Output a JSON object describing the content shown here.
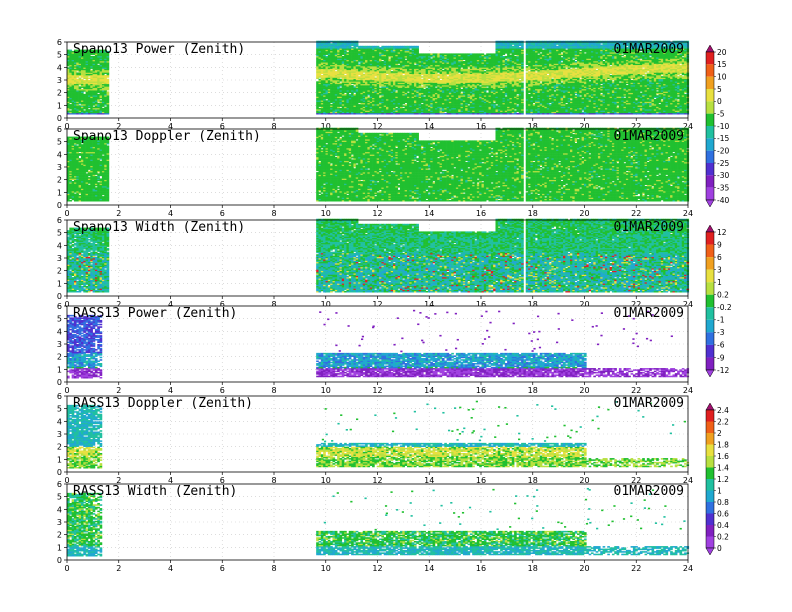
{
  "chart_data": {
    "type": "heatmap",
    "x_ticks": [
      0,
      2,
      4,
      6,
      8,
      10,
      12,
      14,
      16,
      18,
      20,
      22,
      24
    ],
    "y_ticks": [
      0,
      1,
      2,
      3,
      4,
      5,
      6
    ],
    "xlim": [
      0,
      24
    ],
    "ylim": [
      0,
      6
    ],
    "panels": [
      {
        "title": "Spano13 Power (Zenith)",
        "date": "01MAR2009",
        "colorbar": 1,
        "profile": "power_spano"
      },
      {
        "title": "Spano13 Doppler (Zenith)",
        "date": "01MAR2009",
        "colorbar": 1,
        "profile": "doppler_spano"
      },
      {
        "title": "Spano13 Width (Zenith)",
        "date": "01MAR2009",
        "colorbar": 2,
        "profile": "width_spano"
      },
      {
        "title": "RASS13 Power (Zenith)",
        "date": "01MAR2009",
        "colorbar": 2,
        "profile": "power_rass"
      },
      {
        "title": "RASS13 Doppler (Zenith)",
        "date": "01MAR2009",
        "colorbar": 3,
        "profile": "doppler_rass"
      },
      {
        "title": "RASS13 Width (Zenith)",
        "date": "01MAR2009",
        "colorbar": 3,
        "profile": "width_rass"
      }
    ],
    "colorbars": [
      {
        "labels": [
          "20",
          "15",
          "10",
          "5",
          "0",
          "-5",
          "-10",
          "-15",
          "-20",
          "-25",
          "-30",
          "-35",
          "-40"
        ]
      },
      {
        "labels": [
          "12",
          "9",
          "6",
          "3",
          "1",
          "0.2",
          "-0.2",
          "-1",
          "-3",
          "-6",
          "-9",
          "-12"
        ]
      },
      {
        "labels": [
          "2.4",
          "2.2",
          "2",
          "1.8",
          "1.6",
          "1.4",
          "1.2",
          "1",
          "0.8",
          "0.6",
          "0.4",
          "0.2",
          "0"
        ]
      }
    ],
    "palette": [
      "#a0106e",
      "#e02020",
      "#f06018",
      "#f0a020",
      "#e8e040",
      "#b8e040",
      "#20c030",
      "#20c0a0",
      "#20a8d0",
      "#3070e0",
      "#5030d0",
      "#8020c0",
      "#a040e0"
    ]
  }
}
